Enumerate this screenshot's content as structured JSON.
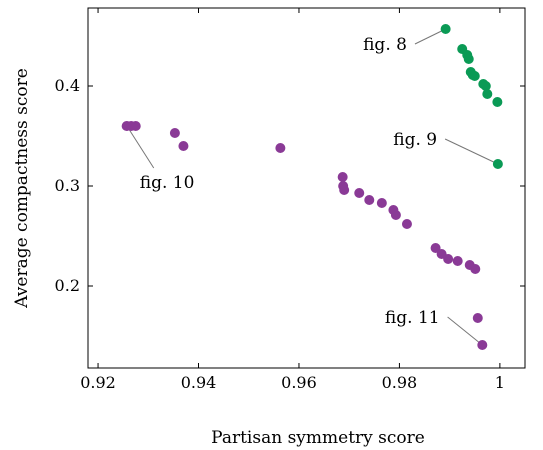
{
  "chart_data": {
    "type": "scatter",
    "title": "",
    "xlabel": "Partisan symmetry score",
    "ylabel": "Average compactness score",
    "xlim": [
      0.918,
      1.005
    ],
    "ylim": [
      0.118,
      0.478
    ],
    "x_ticks": [
      {
        "value": 0.92,
        "label": "0.92"
      },
      {
        "value": 0.94,
        "label": "0.94"
      },
      {
        "value": 0.96,
        "label": "0.96"
      },
      {
        "value": 0.98,
        "label": "0.98"
      },
      {
        "value": 1.0,
        "label": "1"
      }
    ],
    "y_ticks": [
      {
        "value": 0.2,
        "label": "0.2"
      },
      {
        "value": 0.3,
        "label": "0.3"
      },
      {
        "value": 0.4,
        "label": "0.4"
      }
    ],
    "grid": false,
    "legend": "none",
    "series": [
      {
        "color": "#0a9a55",
        "points": [
          {
            "x": 0.9892,
            "y": 0.457
          },
          {
            "x": 0.9925,
            "y": 0.437
          },
          {
            "x": 0.9935,
            "y": 0.431
          },
          {
            "x": 0.9938,
            "y": 0.427
          },
          {
            "x": 0.9942,
            "y": 0.414
          },
          {
            "x": 0.9946,
            "y": 0.411
          },
          {
            "x": 0.995,
            "y": 0.41
          },
          {
            "x": 0.9967,
            "y": 0.402
          },
          {
            "x": 0.9972,
            "y": 0.4
          },
          {
            "x": 0.9975,
            "y": 0.392
          },
          {
            "x": 0.9995,
            "y": 0.384
          },
          {
            "x": 0.9996,
            "y": 0.322
          }
        ]
      },
      {
        "color": "#8a3a96",
        "points": [
          {
            "x": 0.9257,
            "y": 0.36
          },
          {
            "x": 0.9266,
            "y": 0.36
          },
          {
            "x": 0.9275,
            "y": 0.36
          },
          {
            "x": 0.9353,
            "y": 0.353
          },
          {
            "x": 0.937,
            "y": 0.34
          },
          {
            "x": 0.9563,
            "y": 0.338
          },
          {
            "x": 0.9687,
            "y": 0.309
          },
          {
            "x": 0.9688,
            "y": 0.3
          },
          {
            "x": 0.969,
            "y": 0.296
          },
          {
            "x": 0.972,
            "y": 0.293
          },
          {
            "x": 0.974,
            "y": 0.286
          },
          {
            "x": 0.9765,
            "y": 0.283
          },
          {
            "x": 0.9788,
            "y": 0.276
          },
          {
            "x": 0.9793,
            "y": 0.271
          },
          {
            "x": 0.9815,
            "y": 0.262
          },
          {
            "x": 0.9872,
            "y": 0.238
          },
          {
            "x": 0.9884,
            "y": 0.232
          },
          {
            "x": 0.9897,
            "y": 0.227
          },
          {
            "x": 0.9916,
            "y": 0.225
          },
          {
            "x": 0.994,
            "y": 0.221
          },
          {
            "x": 0.9951,
            "y": 0.217
          },
          {
            "x": 0.9956,
            "y": 0.168
          },
          {
            "x": 0.9965,
            "y": 0.141
          }
        ]
      }
    ],
    "annotations": [
      {
        "text": "fig. 8",
        "point": {
          "x": 0.9892,
          "y": 0.457
        },
        "label_at": {
          "x": 0.9815,
          "y": 0.436
        },
        "anchor": "end"
      },
      {
        "text": "fig. 9",
        "point": {
          "x": 0.9996,
          "y": 0.322
        },
        "label_at": {
          "x": 0.9875,
          "y": 0.341
        },
        "anchor": "end"
      },
      {
        "text": "fig. 10",
        "point": {
          "x": 0.926,
          "y": 0.358
        },
        "label_at": {
          "x": 0.9283,
          "y": 0.298
        },
        "anchor": "start"
      },
      {
        "text": "fig. 11",
        "point": {
          "x": 0.9965,
          "y": 0.141
        },
        "label_at": {
          "x": 0.988,
          "y": 0.163
        },
        "anchor": "end"
      }
    ]
  }
}
